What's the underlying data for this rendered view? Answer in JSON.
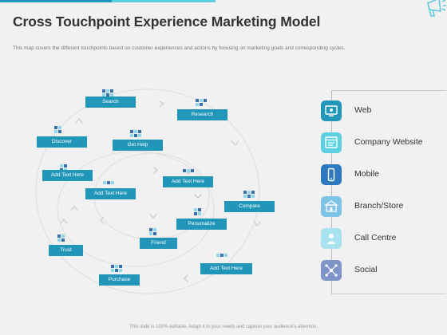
{
  "header": {
    "title": "Cross Touchpoint Experience Marketing Model",
    "subtitle": "This map covers the different touchpoints based on customer experiences and actions by focusing on marketing goals and corresponding cycles."
  },
  "diagram": {
    "nodes": [
      {
        "id": "search",
        "label": "Search"
      },
      {
        "id": "research",
        "label": "Research"
      },
      {
        "id": "discover",
        "label": "Discover"
      },
      {
        "id": "get-help",
        "label": "Get Help"
      },
      {
        "id": "add-text-1",
        "label": "Add Text Here"
      },
      {
        "id": "add-text-2",
        "label": "Add Text Here"
      },
      {
        "id": "add-text-3",
        "label": "Add Text Here"
      },
      {
        "id": "compare",
        "label": "Compare"
      },
      {
        "id": "personalize",
        "label": "Personalize"
      },
      {
        "id": "friend",
        "label": "Friend"
      },
      {
        "id": "trust",
        "label": "Trust"
      },
      {
        "id": "add-text-4",
        "label": "Add Text Here"
      },
      {
        "id": "purchase",
        "label": "Purchase"
      }
    ]
  },
  "legend": {
    "items": [
      {
        "label": "Web",
        "icon": "monitor-icon"
      },
      {
        "label": "Company Website",
        "icon": "browser-icon"
      },
      {
        "label": "Mobile",
        "icon": "mobile-icon"
      },
      {
        "label": "Branch/Store",
        "icon": "store-icon"
      },
      {
        "label": "Call Centre",
        "icon": "person-icon"
      },
      {
        "label": "Social",
        "icon": "network-icon"
      }
    ]
  },
  "footer": {
    "note": "This slide is 100% editable. Adapt it to your needs and capture your audience's attention."
  },
  "colors": {
    "node": "#2196b9",
    "accent_light": "#5dd0e2",
    "glyph_dark": "#3b6fa8",
    "glyph_light": "#8fd6e8"
  }
}
